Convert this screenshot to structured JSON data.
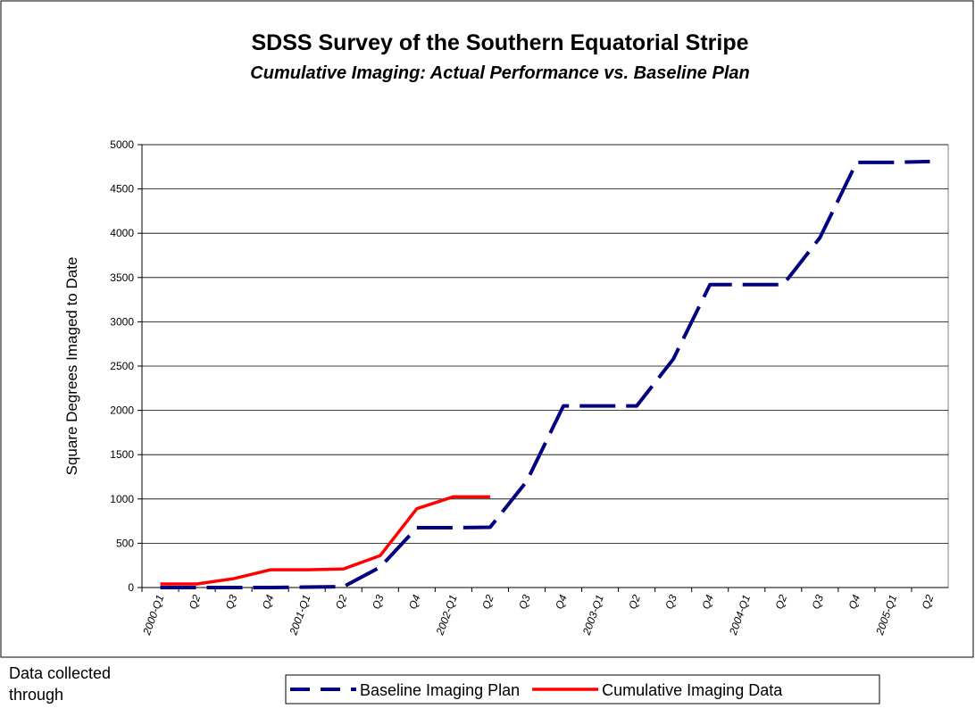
{
  "chart_data": {
    "type": "line",
    "title": "SDSS Survey of the Southern Equatorial Stripe",
    "subtitle": "Cumulative Imaging: Actual Performance vs. Baseline Plan",
    "y_label": "Square Degrees Imaged to Date",
    "note": "Data collected through",
    "categories": [
      "2000-Q1",
      "Q2",
      "Q3",
      "Q4",
      "2001-Q1",
      "Q2",
      "Q3",
      "Q4",
      "2002-Q1",
      "Q2",
      "Q3",
      "Q4",
      "2003-Q1",
      "Q2",
      "Q3",
      "Q4",
      "2004-Q1",
      "Q2",
      "Q3",
      "Q4",
      "2005-Q1",
      "Q2"
    ],
    "series": [
      {
        "name": "Baseline Imaging Plan",
        "color": "#000080",
        "dashed": true,
        "values": [
          0,
          0,
          0,
          0,
          5,
          10,
          230,
          675,
          675,
          680,
          1200,
          2050,
          2050,
          2050,
          2580,
          3420,
          3420,
          3420,
          3950,
          4800,
          4800,
          4810
        ]
      },
      {
        "name": "Cumulative Imaging Data",
        "color": "#ff0000",
        "dashed": false,
        "values": [
          40,
          40,
          100,
          200,
          200,
          210,
          360,
          890,
          1025,
          1025,
          null,
          null,
          null,
          null,
          null,
          null,
          null,
          null,
          null,
          null,
          null,
          null
        ]
      }
    ],
    "ylim": [
      0,
      5000
    ],
    "yticks": [
      0,
      500,
      1000,
      1500,
      2000,
      2500,
      3000,
      3500,
      4000,
      4500,
      5000
    ],
    "grid": true
  }
}
